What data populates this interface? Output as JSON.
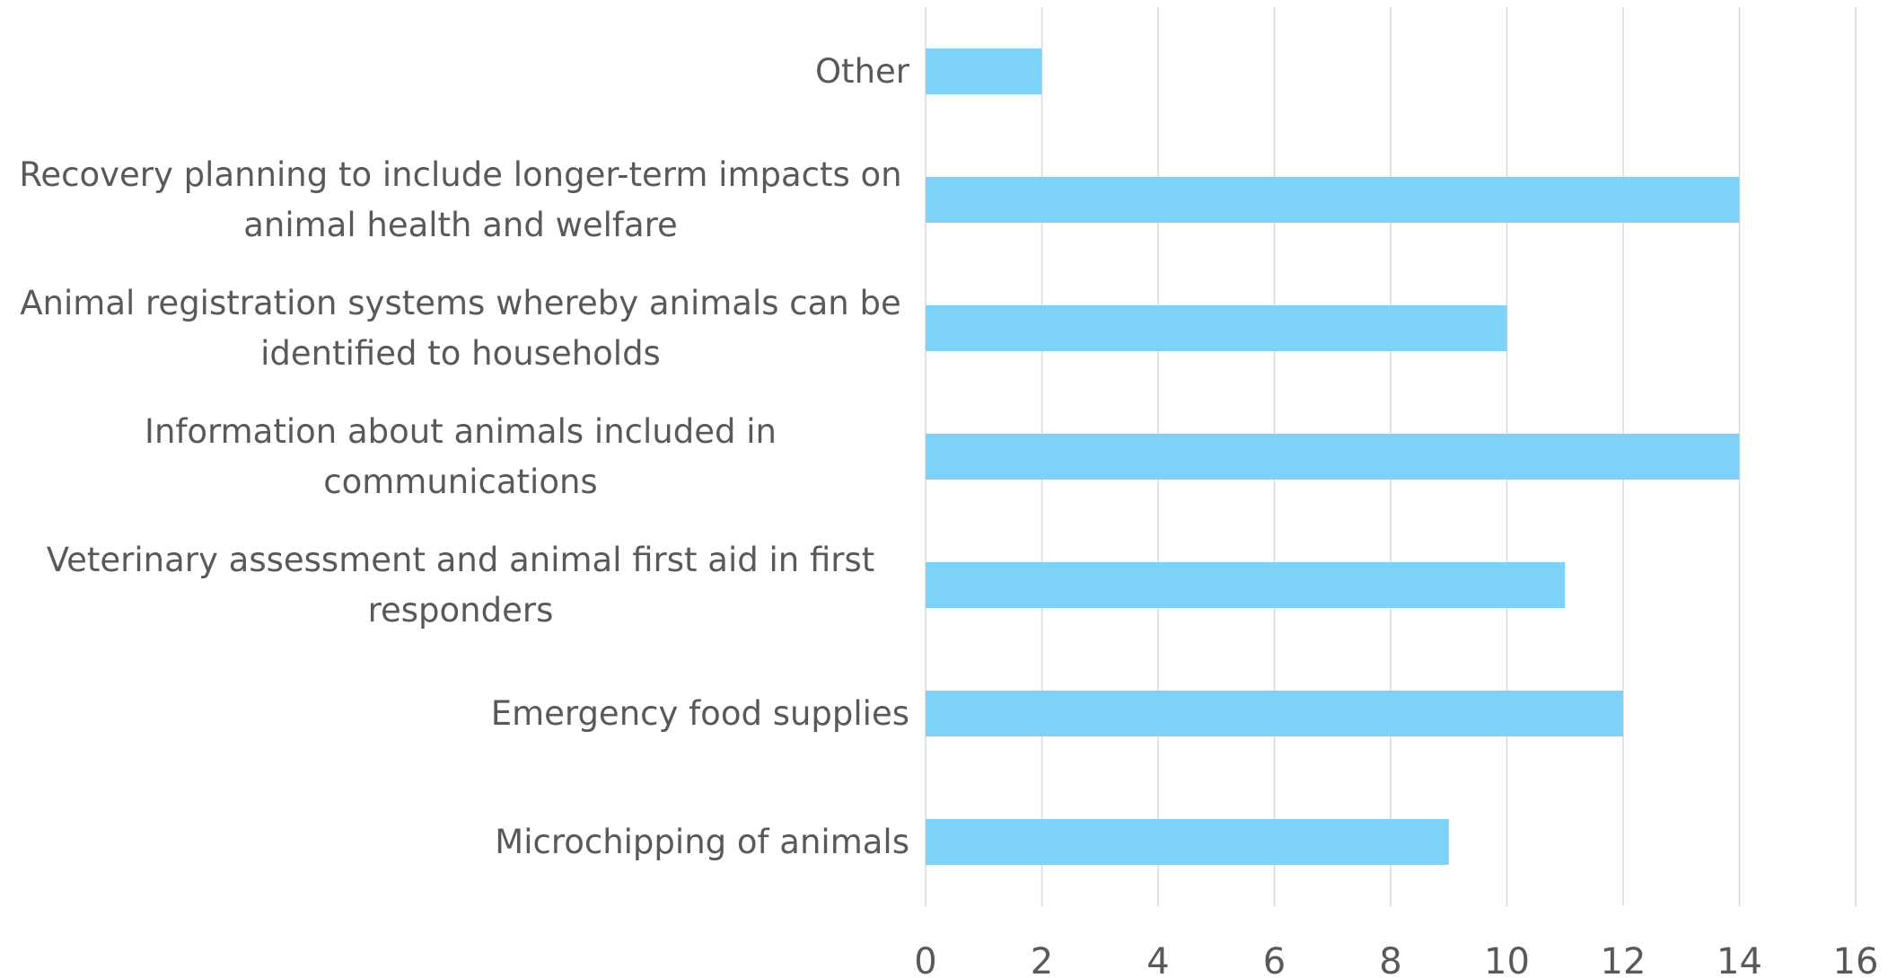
{
  "chart_data": {
    "type": "bar",
    "orientation": "horizontal",
    "categories": [
      "Other",
      "Recovery planning to include longer-term impacts on animal health and welfare",
      "Animal registration systems whereby animals can be identified to households",
      "Information about animals included in communications",
      "Veterinary assessment and animal first aid in first responders",
      "Emergency food supplies",
      "Microchipping of animals"
    ],
    "values": [
      2,
      14,
      10,
      14,
      11,
      12,
      9
    ],
    "color": "#7dd3f7",
    "xlim": [
      0,
      16
    ],
    "xticks": [
      0,
      2,
      4,
      6,
      8,
      10,
      12,
      14,
      16
    ],
    "grid": true
  }
}
